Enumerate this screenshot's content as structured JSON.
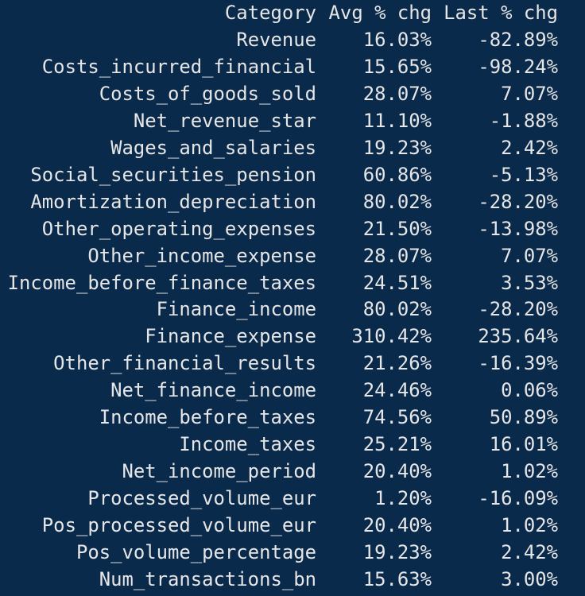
{
  "table": {
    "header": [
      "Category",
      "Avg % chg",
      "Last % chg"
    ],
    "rows": [
      [
        "Revenue",
        "16.03%",
        "-82.89%"
      ],
      [
        "Costs_incurred_financial",
        "15.65%",
        "-98.24%"
      ],
      [
        "Costs_of_goods_sold",
        "28.07%",
        "7.07%"
      ],
      [
        "Net_revenue_star",
        "11.10%",
        "-1.88%"
      ],
      [
        "Wages_and_salaries",
        "19.23%",
        "2.42%"
      ],
      [
        "Social_securities_pension",
        "60.86%",
        "-5.13%"
      ],
      [
        "Amortization_depreciation",
        "80.02%",
        "-28.20%"
      ],
      [
        "Other_operating_expenses",
        "21.50%",
        "-13.98%"
      ],
      [
        "Other_income_expense",
        "28.07%",
        "7.07%"
      ],
      [
        "Income_before_finance_taxes",
        "24.51%",
        "3.53%"
      ],
      [
        "Finance_income",
        "80.02%",
        "-28.20%"
      ],
      [
        "Finance_expense",
        "310.42%",
        "235.64%"
      ],
      [
        "Other_financial_results",
        "21.26%",
        "-16.39%"
      ],
      [
        "Net_finance_income",
        "24.46%",
        "0.06%"
      ],
      [
        "Income_before_taxes",
        "74.56%",
        "50.89%"
      ],
      [
        "Income_taxes",
        "25.21%",
        "16.01%"
      ],
      [
        "Net_income_period",
        "20.40%",
        "1.02%"
      ],
      [
        "Processed_volume_eur",
        "1.20%",
        "-16.09%"
      ],
      [
        "Pos_processed_volume_eur",
        "20.40%",
        "1.02%"
      ],
      [
        "Pos_volume_percentage",
        "19.23%",
        "2.42%"
      ],
      [
        "Num_transactions_bn",
        "15.63%",
        "3.00%"
      ]
    ]
  }
}
